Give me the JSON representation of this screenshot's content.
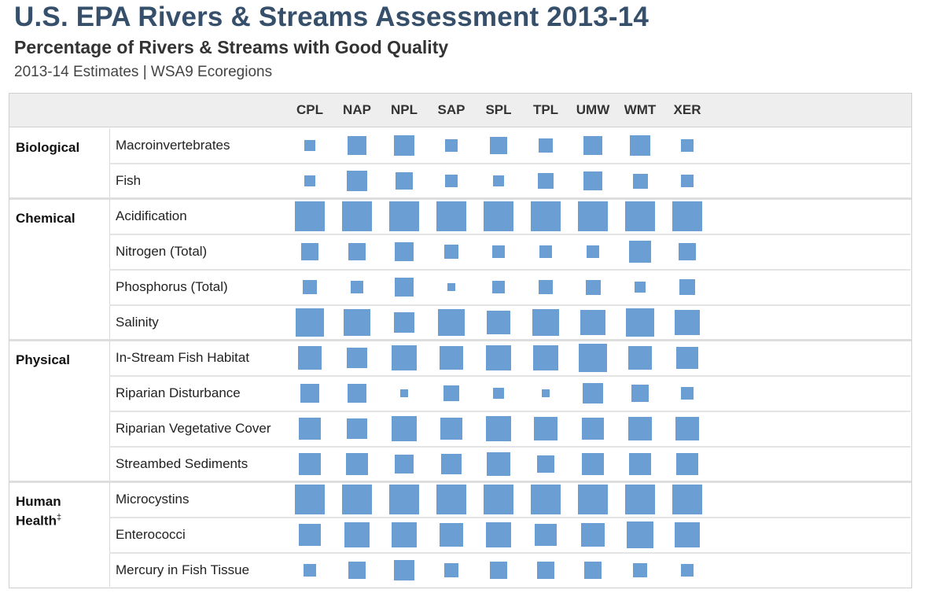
{
  "header": {
    "title": "U.S. EPA Rivers & Streams Assessment 2013-14",
    "subtitle": "Percentage of Rivers & Streams with Good Quality",
    "subsubtitle": "2013-14 Estimates | WSA9 Ecoregions"
  },
  "colors": {
    "square": "#6b9fd4",
    "title": "#36506b",
    "header_bg": "#eeeeee"
  },
  "chart_data": {
    "type": "table",
    "encoding": "square area proportional to percentage of rivers & streams in good condition",
    "columns": [
      "CPL",
      "NAP",
      "NPL",
      "SAP",
      "SPL",
      "TPL",
      "UMW",
      "WMT",
      "XER"
    ],
    "groups": [
      {
        "name": "Biological",
        "footnote": "",
        "rows": [
          {
            "label": "Macroinvertebrates",
            "values": [
              14,
              38,
              46,
              20,
              32,
              22,
              37,
              46,
              20
            ]
          },
          {
            "label": "Fish",
            "values": [
              14,
              44,
              33,
              20,
              14,
              26,
              39,
              25,
              17
            ]
          }
        ]
      },
      {
        "name": "Chemical",
        "footnote": "",
        "rows": [
          {
            "label": "Acidification",
            "values": [
              96,
              97,
              98,
              98,
              96,
              97,
              98,
              98,
              98
            ]
          },
          {
            "label": "Nitrogen (Total)",
            "values": [
              32,
              34,
              42,
              22,
              18,
              19,
              20,
              58,
              35
            ]
          },
          {
            "label": "Phosphorus (Total)",
            "values": [
              21,
              17,
              39,
              6,
              18,
              22,
              25,
              15,
              27
            ]
          },
          {
            "label": "Salinity",
            "values": [
              87,
              82,
              50,
              80,
              66,
              84,
              68,
              88,
              70
            ]
          },
          {
            "label": "In-Stream Fish Habitat",
            "values": [
              59,
              49,
              67,
              62,
              74,
              68,
              90,
              59,
              55
            ]
          },
          {
            "label": "Riparian Disturbance",
            "values": [
              37,
              37,
              8,
              26,
              14,
              8,
              48,
              35,
              16
            ]
          },
          {
            "label": "Riparian Vegetative Cover",
            "values": [
              54,
              49,
              68,
              52,
              72,
              60,
              58,
              60,
              62
            ]
          },
          {
            "label": "Streambed Sediments",
            "values": [
              52,
              52,
              37,
              50,
              64,
              31,
              57,
              52,
              58
            ]
          }
        ]
      },
      {
        "name": "Physical",
        "footnote": "",
        "rows": []
      },
      {
        "name": "Human Health",
        "footnote": "‡",
        "rows": [
          {
            "label": "Microcystins",
            "values": [
              98,
              97,
              98,
              98,
              98,
              97,
              98,
              98,
              97
            ]
          },
          {
            "label": "Enterococci",
            "values": [
              58,
              70,
              75,
              59,
              67,
              57,
              66,
              80,
              75
            ]
          },
          {
            "label": "Mercury in Fish Tissue",
            "values": [
              17,
              36,
              46,
              22,
              32,
              36,
              36,
              22,
              18
            ]
          }
        ]
      }
    ]
  }
}
